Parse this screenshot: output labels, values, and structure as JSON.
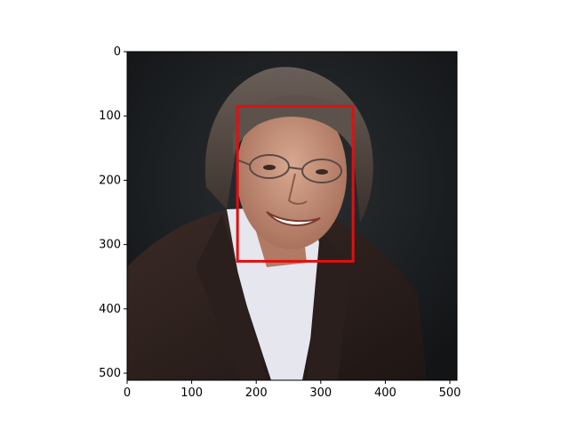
{
  "figure": {
    "image_description": "Portrait photo of a smiling man with glasses wearing a dark jacket and white shirt",
    "background": "#1f2224",
    "box_color": "#e01010",
    "x_ticks": [
      "0",
      "100",
      "200",
      "300",
      "400",
      "500"
    ],
    "y_ticks": [
      "0",
      "100",
      "200",
      "300",
      "400",
      "500"
    ]
  },
  "chart_data": {
    "type": "image",
    "xlim": [
      0,
      511
    ],
    "ylim": [
      511,
      0
    ],
    "x_ticks": [
      0,
      100,
      200,
      300,
      400,
      500
    ],
    "y_ticks": [
      0,
      100,
      200,
      300,
      400,
      500
    ],
    "box": {
      "x1": 171,
      "y1": 85,
      "x2": 350,
      "y2": 326
    }
  }
}
